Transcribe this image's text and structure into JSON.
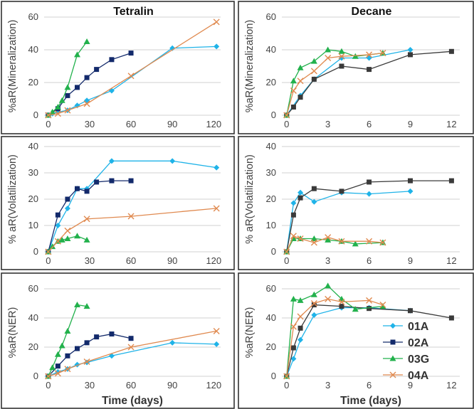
{
  "figure": {
    "column_titles": [
      "Tetralin",
      "Decane"
    ],
    "x_label": "Time (days)"
  },
  "colors": {
    "01A": "#1fb3e8",
    "02A": "#132a6b",
    "03G": "#22b14c",
    "04A": "#e08a50",
    "decane_02A": "#3a3a3a",
    "frame": "#333333",
    "grid": "#d0d0d0"
  },
  "legend": {
    "placement": "bottom-right",
    "entries": [
      {
        "label": "01A",
        "series": "01A",
        "marker": "diamond"
      },
      {
        "label": "02A",
        "series": "02A",
        "marker": "square"
      },
      {
        "label": "03G",
        "series": "03G",
        "marker": "triangle"
      },
      {
        "label": "04A",
        "series": "04A",
        "marker": "x"
      }
    ]
  },
  "chart_data": [
    {
      "type": "line",
      "panel": "tetralin-mineralization",
      "title": "Tetralin",
      "ylabel": "%aR(Mineralization)",
      "xlabel": "",
      "ylim": [
        0,
        60
      ],
      "yticks": [
        0,
        20,
        40,
        60
      ],
      "xlim": [
        -3,
        125
      ],
      "xticks": [
        0,
        30,
        60,
        90,
        120
      ],
      "series": [
        {
          "name": "01A",
          "marker": "diamond",
          "color_key": "01A",
          "x": [
            0,
            3,
            7,
            14,
            21,
            28,
            46,
            90,
            122
          ],
          "y": [
            0,
            1,
            2,
            3,
            6,
            9,
            15,
            41,
            42
          ]
        },
        {
          "name": "02A",
          "marker": "square",
          "color_key": "02A",
          "x": [
            0,
            7,
            14,
            21,
            28,
            35,
            46,
            60
          ],
          "y": [
            0,
            4,
            12,
            17,
            23,
            28,
            34,
            38
          ]
        },
        {
          "name": "03G",
          "marker": "triangle",
          "color_key": "03G",
          "x": [
            0,
            3,
            7,
            10,
            14,
            21,
            28
          ],
          "y": [
            0,
            2,
            5,
            9,
            17,
            37,
            45
          ]
        },
        {
          "name": "04A",
          "marker": "x",
          "color_key": "04A",
          "x": [
            0,
            7,
            14,
            28,
            60,
            122
          ],
          "y": [
            0,
            1,
            3,
            7,
            24,
            57
          ]
        }
      ]
    },
    {
      "type": "line",
      "panel": "decane-mineralization",
      "title": "Decane",
      "ylabel": "%aR(Mineralization)",
      "xlabel": "",
      "ylim": [
        0,
        60
      ],
      "yticks": [
        0,
        20,
        40,
        60
      ],
      "xlim": [
        -0.35,
        12.6
      ],
      "xticks": [
        0,
        3,
        6,
        9,
        12
      ],
      "series": [
        {
          "name": "01A",
          "marker": "diamond",
          "color_key": "01A",
          "x": [
            0,
            1,
            2,
            4,
            6,
            9
          ],
          "y": [
            0,
            12,
            22,
            35,
            35,
            40
          ]
        },
        {
          "name": "02A",
          "marker": "square",
          "color_key": "decane_02A",
          "x": [
            0,
            0.5,
            1,
            2,
            4,
            6,
            9,
            12
          ],
          "y": [
            0,
            5,
            11,
            22,
            30,
            28,
            37,
            39
          ]
        },
        {
          "name": "03G",
          "marker": "triangle",
          "color_key": "03G",
          "x": [
            0,
            0.5,
            1,
            2,
            3,
            4,
            5,
            7
          ],
          "y": [
            0,
            21,
            29,
            33,
            40,
            39,
            36,
            38
          ]
        },
        {
          "name": "04A",
          "marker": "x",
          "color_key": "04A",
          "x": [
            0,
            0.5,
            1,
            2,
            3,
            4,
            6,
            7
          ],
          "y": [
            0,
            15,
            21,
            27,
            35,
            36,
            37,
            38
          ]
        }
      ]
    },
    {
      "type": "line",
      "panel": "tetralin-volatilization",
      "title": "",
      "ylabel": "% aR(Volatilization)",
      "xlabel": "",
      "ylim": [
        0,
        40
      ],
      "yticks": [
        0,
        10,
        20,
        30,
        40
      ],
      "xlim": [
        -3,
        125
      ],
      "xticks": [
        0,
        30,
        60,
        90,
        120
      ],
      "series": [
        {
          "name": "01A",
          "marker": "diamond",
          "color_key": "01A",
          "x": [
            0,
            7,
            14,
            21,
            28,
            46,
            90,
            122
          ],
          "y": [
            0,
            10,
            16.5,
            24,
            24,
            34.5,
            34.5,
            32
          ]
        },
        {
          "name": "02A",
          "marker": "square",
          "color_key": "02A",
          "x": [
            0,
            7,
            14,
            21,
            28,
            35,
            46,
            60
          ],
          "y": [
            0,
            14,
            20,
            24,
            23,
            26.5,
            27,
            27
          ]
        },
        {
          "name": "03G",
          "marker": "triangle",
          "color_key": "03G",
          "x": [
            0,
            3,
            7,
            10,
            14,
            21,
            28
          ],
          "y": [
            0,
            2,
            4,
            4.5,
            5,
            6,
            4.5
          ]
        },
        {
          "name": "04A",
          "marker": "x",
          "color_key": "04A",
          "x": [
            0,
            7,
            14,
            28,
            60,
            122
          ],
          "y": [
            0,
            4,
            8,
            12.5,
            13.5,
            16.5
          ]
        }
      ]
    },
    {
      "type": "line",
      "panel": "decane-volatilization",
      "title": "",
      "ylabel": "% aR(Volatilization)",
      "xlabel": "",
      "ylim": [
        0,
        40
      ],
      "yticks": [
        0,
        10,
        20,
        30,
        40
      ],
      "xlim": [
        -0.35,
        12.6
      ],
      "xticks": [
        0,
        3,
        6,
        9,
        12
      ],
      "series": [
        {
          "name": "01A",
          "marker": "diamond",
          "color_key": "01A",
          "x": [
            0,
            0.5,
            1,
            2,
            4,
            6,
            9
          ],
          "y": [
            0,
            18.5,
            22.5,
            19,
            22.5,
            22,
            23
          ]
        },
        {
          "name": "02A",
          "marker": "square",
          "color_key": "decane_02A",
          "x": [
            0,
            0.5,
            1,
            2,
            4,
            6,
            9,
            12
          ],
          "y": [
            0,
            14,
            20.5,
            24,
            23,
            26.5,
            27,
            27
          ]
        },
        {
          "name": "03G",
          "marker": "triangle",
          "color_key": "03G",
          "x": [
            0,
            0.5,
            1,
            2,
            3,
            4,
            5,
            7
          ],
          "y": [
            0,
            5,
            5,
            5,
            4.5,
            4,
            3,
            3.5
          ]
        },
        {
          "name": "04A",
          "marker": "x",
          "color_key": "04A",
          "x": [
            0,
            0.5,
            1,
            2,
            3,
            4,
            6,
            7
          ],
          "y": [
            0,
            6,
            5,
            3.5,
            5.5,
            4,
            4,
            3.5
          ]
        }
      ]
    },
    {
      "type": "line",
      "panel": "tetralin-ner",
      "title": "",
      "ylabel": "%aR(NER)",
      "xlabel": "Time (days)",
      "ylim": [
        0,
        60
      ],
      "yticks": [
        0,
        20,
        40,
        60
      ],
      "xlim": [
        -3,
        125
      ],
      "xticks": [
        0,
        30,
        60,
        90,
        120
      ],
      "series": [
        {
          "name": "01A",
          "marker": "diamond",
          "color_key": "01A",
          "x": [
            0,
            7,
            14,
            21,
            28,
            46,
            90,
            122
          ],
          "y": [
            0,
            3,
            5,
            8,
            9.5,
            14,
            23,
            22
          ]
        },
        {
          "name": "02A",
          "marker": "square",
          "color_key": "02A",
          "x": [
            0,
            7,
            14,
            21,
            28,
            35,
            46,
            60
          ],
          "y": [
            0,
            7,
            14,
            19,
            23,
            27,
            29,
            26
          ]
        },
        {
          "name": "03G",
          "marker": "triangle",
          "color_key": "03G",
          "x": [
            0,
            3,
            7,
            10,
            14,
            21,
            28
          ],
          "y": [
            0,
            6,
            15,
            21,
            31,
            49,
            48
          ]
        },
        {
          "name": "04A",
          "marker": "x",
          "color_key": "04A",
          "x": [
            0,
            7,
            14,
            28,
            60,
            122
          ],
          "y": [
            0,
            2,
            5,
            10,
            20,
            31
          ]
        }
      ]
    },
    {
      "type": "line",
      "panel": "decane-ner",
      "title": "",
      "ylabel": "%aR(NER)",
      "xlabel": "Time (days)",
      "ylim": [
        0,
        60
      ],
      "yticks": [
        0,
        20,
        40,
        60
      ],
      "xlim": [
        -0.35,
        12.6
      ],
      "xticks": [
        0,
        3,
        6,
        9,
        12
      ],
      "series": [
        {
          "name": "01A",
          "marker": "diamond",
          "color_key": "01A",
          "x": [
            0,
            0.5,
            1,
            2,
            4,
            6,
            9
          ],
          "y": [
            0,
            12,
            25,
            42,
            47,
            47,
            45
          ]
        },
        {
          "name": "02A",
          "marker": "square",
          "color_key": "decane_02A",
          "x": [
            0,
            0.5,
            1,
            2,
            4,
            6,
            9,
            12
          ],
          "y": [
            0,
            19.5,
            33,
            49,
            48,
            46.5,
            45,
            40
          ]
        },
        {
          "name": "03G",
          "marker": "triangle",
          "color_key": "03G",
          "x": [
            0,
            0.5,
            1,
            2,
            3,
            4,
            5,
            7
          ],
          "y": [
            0,
            53,
            52,
            56,
            62,
            53,
            46,
            48
          ]
        },
        {
          "name": "04A",
          "marker": "x",
          "color_key": "04A",
          "x": [
            0,
            0.5,
            1,
            2,
            3,
            4,
            6,
            7
          ],
          "y": [
            0,
            34,
            41,
            50,
            53,
            51,
            52,
            49
          ]
        }
      ]
    }
  ]
}
